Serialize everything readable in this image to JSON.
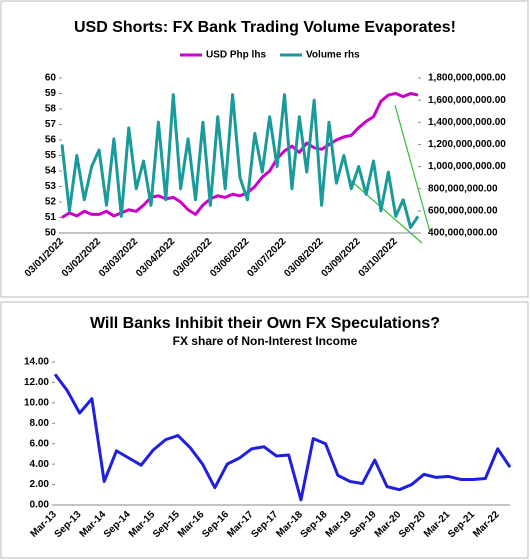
{
  "chart_data": [
    {
      "type": "line",
      "title": "USD Shorts: FX Bank Trading Volume Evaporates!",
      "categories": [
        "03/01/2022",
        null,
        null,
        null,
        null,
        "03/02/2022",
        null,
        null,
        null,
        null,
        "03/03/2022",
        null,
        null,
        null,
        null,
        "03/04/2022",
        null,
        null,
        null,
        null,
        "03/05/2022",
        null,
        null,
        null,
        null,
        "03/06/2022",
        null,
        null,
        null,
        null,
        "03/07/2022",
        null,
        null,
        null,
        null,
        "03/08/2022",
        null,
        null,
        null,
        null,
        "03/09/2022",
        null,
        null,
        null,
        null,
        "03/10/2022",
        null,
        null,
        null
      ],
      "series": [
        {
          "name": "USD Php lhs",
          "color": "#cc00cc",
          "values": [
            51.0,
            51.3,
            51.1,
            51.4,
            51.2,
            51.2,
            51.4,
            51.1,
            51.3,
            51.5,
            51.4,
            51.8,
            52.3,
            52.4,
            52.2,
            52.3,
            52.0,
            51.5,
            51.2,
            51.8,
            52.2,
            52.4,
            52.3,
            52.5,
            52.4,
            52.6,
            53.0,
            53.6,
            54.0,
            54.8,
            55.3,
            55.6,
            55.2,
            55.8,
            55.5,
            55.4,
            55.7,
            56.0,
            56.2,
            56.3,
            56.8,
            57.2,
            57.5,
            58.5,
            58.9,
            59.0,
            58.8,
            59.0,
            58.9
          ]
        },
        {
          "name": "Volume rhs",
          "color": "#1a9a9a",
          "axis": "y2",
          "values": [
            1200000000,
            600000000,
            1100000000,
            700000000,
            1000000000,
            1150000000,
            650000000,
            1250000000,
            550000000,
            1350000000,
            800000000,
            1050000000,
            650000000,
            1400000000,
            700000000,
            1650000000,
            800000000,
            1250000000,
            700000000,
            1400000000,
            650000000,
            1450000000,
            800000000,
            1650000000,
            900000000,
            700000000,
            1300000000,
            950000000,
            1450000000,
            1000000000,
            1650000000,
            800000000,
            1450000000,
            950000000,
            1600000000,
            650000000,
            1400000000,
            850000000,
            1100000000,
            800000000,
            1000000000,
            750000000,
            1050000000,
            600000000,
            950000000,
            550000000,
            700000000,
            450000000,
            550000000
          ]
        }
      ],
      "ylim": [
        50,
        60
      ],
      "yticks": [
        50,
        51,
        52,
        53,
        54,
        55,
        56,
        57,
        58,
        59,
        60
      ],
      "y2lim": [
        400000000,
        1800000000
      ],
      "y2ticks": [
        {
          "value": 400000000,
          "label": "400,000,000.00"
        },
        {
          "value": 600000000,
          "label": "600,000,000.00"
        },
        {
          "value": 800000000,
          "label": "800,000,000.00"
        },
        {
          "value": 1000000000,
          "label": "1,000,000,000.00"
        },
        {
          "value": 1200000000,
          "label": "1,200,000,000.00"
        },
        {
          "value": 1400000000,
          "label": "1,400,000,000.00"
        },
        {
          "value": 1600000000,
          "label": "1,600,000,000.00"
        },
        {
          "value": 1800000000,
          "label": "1,800,000,000.00"
        }
      ],
      "legend": "top"
    },
    {
      "type": "line",
      "title": "Will Banks Inhibit their Own FX Speculations?",
      "subtitle": "FX share of Non-Interest Income",
      "color": "#1f1fe0",
      "categories": [
        "Mar-13",
        null,
        "Sep-13",
        null,
        "Mar-14",
        null,
        "Sep-14",
        null,
        "Mar-15",
        null,
        "Sep-15",
        null,
        "Mar-16",
        null,
        "Sep-16",
        null,
        "Mar-17",
        null,
        "Sep-17",
        null,
        "Mar-18",
        null,
        "Sep-18",
        null,
        "Mar-19",
        null,
        "Sep-19",
        null,
        "Mar-20",
        null,
        "Sep-20",
        null,
        "Mar-21",
        null,
        "Sep-21",
        null,
        "Mar-22",
        null
      ],
      "values": [
        12.8,
        11.2,
        9.0,
        10.4,
        2.3,
        5.3,
        4.6,
        3.9,
        5.4,
        6.4,
        6.8,
        5.6,
        4.0,
        1.7,
        4.0,
        4.6,
        5.5,
        5.7,
        4.8,
        4.9,
        0.5,
        6.5,
        6.0,
        2.9,
        2.3,
        2.1,
        4.4,
        1.8,
        1.5,
        2.0,
        3.0,
        2.7,
        2.8,
        2.5,
        2.5,
        2.6,
        5.5,
        3.7
      ],
      "ylim": [
        0,
        14
      ],
      "yticks": [
        {
          "value": 0,
          "label": "0.00"
        },
        {
          "value": 2,
          "label": "2.00"
        },
        {
          "value": 4,
          "label": "4.00"
        },
        {
          "value": 6,
          "label": "6.00"
        },
        {
          "value": 8,
          "label": "8.00"
        },
        {
          "value": 10,
          "label": "10.00"
        },
        {
          "value": 12,
          "label": "12.00"
        },
        {
          "value": 14,
          "label": "14.00"
        }
      ]
    }
  ]
}
